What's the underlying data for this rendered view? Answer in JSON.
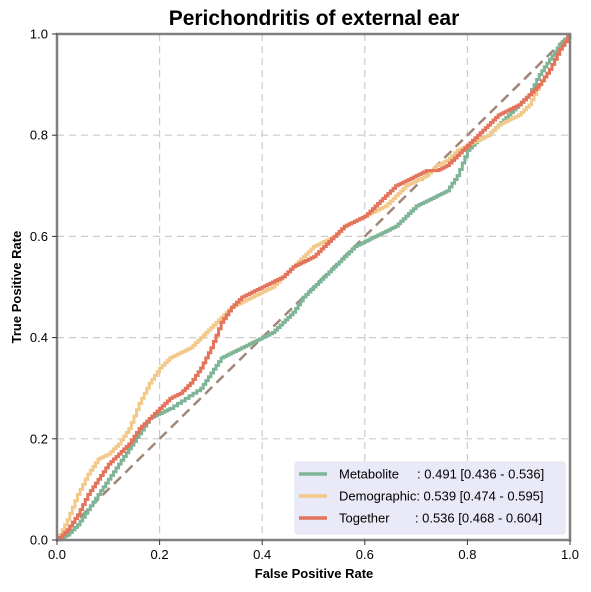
{
  "chart_data": {
    "type": "line",
    "title": "Perichondritis of external ear",
    "xlabel": "False Positive Rate",
    "ylabel": "True Positive Rate",
    "xlim": [
      0,
      1
    ],
    "ylim": [
      0,
      1
    ],
    "xticks": [
      "0.0",
      "0.2",
      "0.4",
      "0.6",
      "0.8",
      "1.0"
    ],
    "yticks": [
      "0.0",
      "0.2",
      "0.4",
      "0.6",
      "0.8",
      "1.0"
    ],
    "grid": true,
    "legend_position": "lower-right",
    "diagonal": {
      "x": [
        0,
        1
      ],
      "y": [
        0,
        1
      ],
      "color": "#a0877a",
      "style": "dashed"
    },
    "series": [
      {
        "name": "Metabolite",
        "label": "Metabolite     : 0.491 [0.436 - 0.536]",
        "color": "#7fb597",
        "x": [
          0,
          0.02,
          0.04,
          0.06,
          0.08,
          0.1,
          0.12,
          0.14,
          0.16,
          0.18,
          0.2,
          0.22,
          0.25,
          0.28,
          0.3,
          0.32,
          0.34,
          0.36,
          0.38,
          0.4,
          0.42,
          0.44,
          0.46,
          0.48,
          0.5,
          0.52,
          0.54,
          0.56,
          0.58,
          0.6,
          0.62,
          0.64,
          0.66,
          0.68,
          0.7,
          0.72,
          0.74,
          0.76,
          0.78,
          0.8,
          0.82,
          0.84,
          0.86,
          0.88,
          0.9,
          0.92,
          0.94,
          0.96,
          0.98,
          1.0
        ],
        "y": [
          0,
          0.01,
          0.03,
          0.06,
          0.09,
          0.12,
          0.15,
          0.18,
          0.21,
          0.24,
          0.25,
          0.26,
          0.28,
          0.3,
          0.33,
          0.36,
          0.37,
          0.38,
          0.39,
          0.4,
          0.41,
          0.43,
          0.45,
          0.48,
          0.5,
          0.52,
          0.54,
          0.56,
          0.58,
          0.59,
          0.6,
          0.61,
          0.62,
          0.64,
          0.66,
          0.67,
          0.68,
          0.69,
          0.72,
          0.77,
          0.79,
          0.8,
          0.82,
          0.84,
          0.86,
          0.88,
          0.92,
          0.95,
          0.98,
          1.0
        ]
      },
      {
        "name": "Demographic",
        "label": "Demographic: 0.539 [0.474 - 0.595]",
        "color": "#f2c98a",
        "x": [
          0,
          0.02,
          0.04,
          0.06,
          0.08,
          0.1,
          0.12,
          0.14,
          0.16,
          0.18,
          0.2,
          0.22,
          0.24,
          0.26,
          0.28,
          0.3,
          0.32,
          0.34,
          0.36,
          0.38,
          0.4,
          0.42,
          0.44,
          0.46,
          0.48,
          0.5,
          0.52,
          0.54,
          0.56,
          0.58,
          0.6,
          0.62,
          0.64,
          0.66,
          0.68,
          0.7,
          0.72,
          0.74,
          0.76,
          0.78,
          0.8,
          0.82,
          0.84,
          0.86,
          0.88,
          0.9,
          0.92,
          0.94,
          0.96,
          0.98,
          1.0
        ],
        "y": [
          0,
          0.04,
          0.09,
          0.13,
          0.16,
          0.17,
          0.19,
          0.22,
          0.27,
          0.31,
          0.34,
          0.36,
          0.37,
          0.38,
          0.4,
          0.42,
          0.44,
          0.46,
          0.47,
          0.48,
          0.49,
          0.5,
          0.52,
          0.54,
          0.56,
          0.58,
          0.59,
          0.6,
          0.62,
          0.63,
          0.64,
          0.65,
          0.66,
          0.68,
          0.7,
          0.71,
          0.72,
          0.74,
          0.75,
          0.77,
          0.78,
          0.79,
          0.8,
          0.82,
          0.83,
          0.84,
          0.86,
          0.9,
          0.93,
          0.97,
          1.0
        ]
      },
      {
        "name": "Together",
        "label": "Together       : 0.536 [0.468 - 0.604]",
        "color": "#e3735a",
        "x": [
          0,
          0.02,
          0.04,
          0.06,
          0.08,
          0.1,
          0.12,
          0.14,
          0.16,
          0.18,
          0.2,
          0.22,
          0.24,
          0.26,
          0.28,
          0.3,
          0.32,
          0.34,
          0.36,
          0.38,
          0.4,
          0.42,
          0.44,
          0.46,
          0.48,
          0.5,
          0.52,
          0.54,
          0.56,
          0.58,
          0.6,
          0.62,
          0.64,
          0.66,
          0.68,
          0.7,
          0.72,
          0.74,
          0.76,
          0.78,
          0.8,
          0.82,
          0.84,
          0.86,
          0.88,
          0.9,
          0.92,
          0.94,
          0.96,
          0.98,
          1.0
        ],
        "y": [
          0,
          0.02,
          0.05,
          0.09,
          0.12,
          0.15,
          0.17,
          0.19,
          0.22,
          0.24,
          0.26,
          0.28,
          0.29,
          0.31,
          0.34,
          0.38,
          0.43,
          0.46,
          0.48,
          0.49,
          0.5,
          0.51,
          0.52,
          0.54,
          0.55,
          0.56,
          0.58,
          0.6,
          0.62,
          0.63,
          0.64,
          0.66,
          0.68,
          0.7,
          0.71,
          0.72,
          0.73,
          0.73,
          0.74,
          0.76,
          0.78,
          0.8,
          0.82,
          0.84,
          0.85,
          0.86,
          0.88,
          0.9,
          0.93,
          0.97,
          1.0
        ]
      }
    ]
  }
}
